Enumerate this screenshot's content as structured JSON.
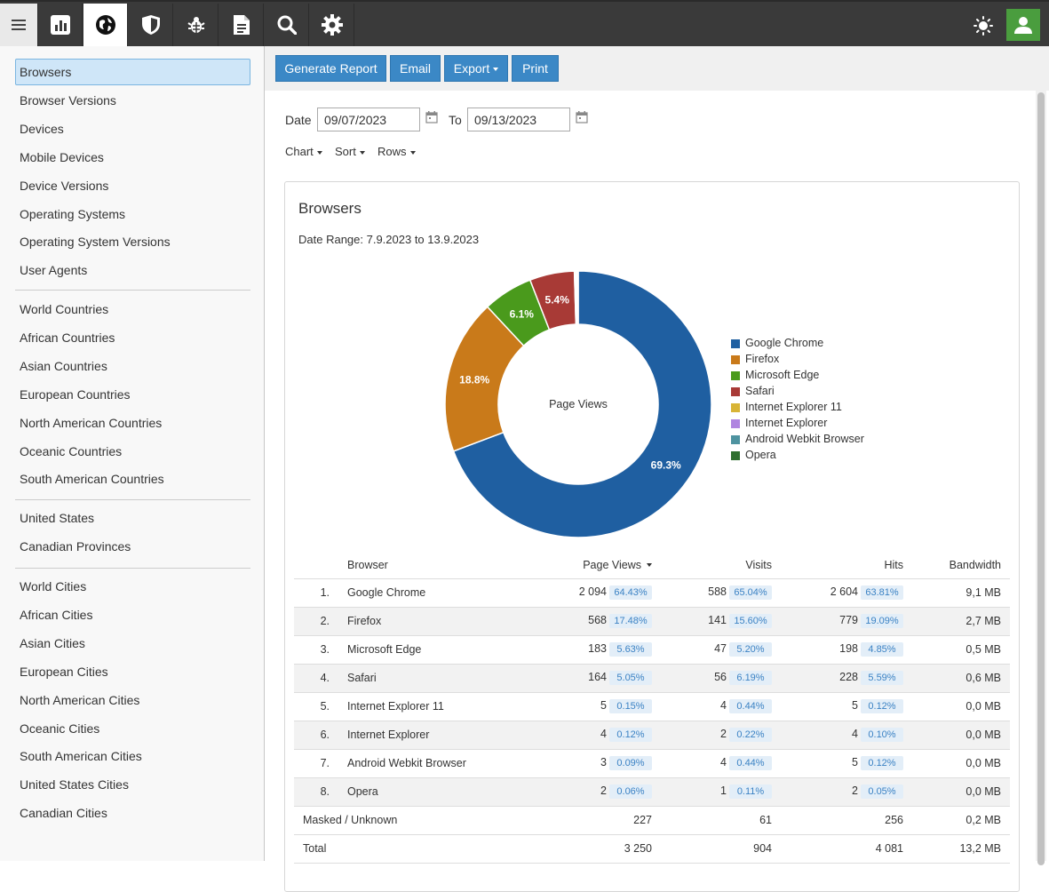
{
  "topbar": {
    "icons": [
      "menu-icon",
      "bar-chart-icon",
      "globe-icon",
      "shield-icon",
      "bug-icon",
      "document-icon",
      "search-icon",
      "gear-icon"
    ],
    "right_icons": [
      "sun-icon",
      "user-icon"
    ],
    "accent": "#3b88c6",
    "user_bg": "#4a9d3e"
  },
  "sidebar": {
    "groups": [
      [
        "Browsers",
        "Browser Versions",
        "Devices",
        "Mobile Devices",
        "Device Versions",
        "Operating Systems",
        "Operating System Versions",
        "User Agents"
      ],
      [
        "World Countries",
        "African Countries",
        "Asian Countries",
        "European Countries",
        "North American Countries",
        "Oceanic Countries",
        "South American Countries"
      ],
      [
        "United States",
        "Canadian Provinces"
      ],
      [
        "World Cities",
        "African Cities",
        "Asian Cities",
        "European Cities",
        "North American Cities",
        "Oceanic Cities",
        "South American Cities",
        "United States Cities",
        "Canadian Cities"
      ]
    ],
    "active": "Browsers"
  },
  "toolbar": {
    "generate": "Generate Report",
    "email": "Email",
    "export": "Export",
    "print": "Print"
  },
  "filters": {
    "date_label": "Date",
    "date_from": "09/07/2023",
    "to_label": "To",
    "date_to": "09/13/2023",
    "chart": "Chart",
    "sort": "Sort",
    "rows": "Rows"
  },
  "report": {
    "title": "Browsers",
    "date_range": "Date Range: 7.9.2023 to 13.9.2023",
    "center_label": "Page Views"
  },
  "chart_data": {
    "type": "pie",
    "title": "Browsers",
    "center_label": "Page Views",
    "categories": [
      "Google Chrome",
      "Firefox",
      "Microsoft Edge",
      "Safari",
      "Internet Explorer 11",
      "Internet Explorer",
      "Android Webkit Browser",
      "Opera"
    ],
    "values": [
      2094,
      568,
      183,
      164,
      5,
      4,
      3,
      2
    ],
    "slice_labels": [
      "69.3%",
      "18.8%",
      "6.1%",
      "5.4%",
      "",
      "",
      "",
      ""
    ],
    "colors": [
      "#1f5fa1",
      "#c97a1a",
      "#4a9a1c",
      "#a83a36",
      "#d8b436",
      "#b085e0",
      "#4e93a0",
      "#2f6f2f"
    ],
    "legend_position": "right"
  },
  "table": {
    "headers": {
      "browser": "Browser",
      "page_views": "Page Views",
      "visits": "Visits",
      "hits": "Hits",
      "bandwidth": "Bandwidth"
    },
    "rows": [
      {
        "rank": "1.",
        "name": "Google Chrome",
        "pv": "2 094",
        "pv_pct": "64.43%",
        "visits": "588",
        "visits_pct": "65.04%",
        "hits": "2 604",
        "hits_pct": "63.81%",
        "bw": "9,1 MB"
      },
      {
        "rank": "2.",
        "name": "Firefox",
        "pv": "568",
        "pv_pct": "17.48%",
        "visits": "141",
        "visits_pct": "15.60%",
        "hits": "779",
        "hits_pct": "19.09%",
        "bw": "2,7 MB"
      },
      {
        "rank": "3.",
        "name": "Microsoft Edge",
        "pv": "183",
        "pv_pct": "5.63%",
        "visits": "47",
        "visits_pct": "5.20%",
        "hits": "198",
        "hits_pct": "4.85%",
        "bw": "0,5 MB"
      },
      {
        "rank": "4.",
        "name": "Safari",
        "pv": "164",
        "pv_pct": "5.05%",
        "visits": "56",
        "visits_pct": "6.19%",
        "hits": "228",
        "hits_pct": "5.59%",
        "bw": "0,6 MB"
      },
      {
        "rank": "5.",
        "name": "Internet Explorer 11",
        "pv": "5",
        "pv_pct": "0.15%",
        "visits": "4",
        "visits_pct": "0.44%",
        "hits": "5",
        "hits_pct": "0.12%",
        "bw": "0,0 MB"
      },
      {
        "rank": "6.",
        "name": "Internet Explorer",
        "pv": "4",
        "pv_pct": "0.12%",
        "visits": "2",
        "visits_pct": "0.22%",
        "hits": "4",
        "hits_pct": "0.10%",
        "bw": "0,0 MB"
      },
      {
        "rank": "7.",
        "name": "Android Webkit Browser",
        "pv": "3",
        "pv_pct": "0.09%",
        "visits": "4",
        "visits_pct": "0.44%",
        "hits": "5",
        "hits_pct": "0.12%",
        "bw": "0,0 MB"
      },
      {
        "rank": "8.",
        "name": "Opera",
        "pv": "2",
        "pv_pct": "0.06%",
        "visits": "1",
        "visits_pct": "0.11%",
        "hits": "2",
        "hits_pct": "0.05%",
        "bw": "0,0 MB"
      }
    ],
    "masked": {
      "label": "Masked / Unknown",
      "pv": "227",
      "visits": "61",
      "hits": "256",
      "bw": "0,2 MB"
    },
    "total": {
      "label": "Total",
      "pv": "3 250",
      "visits": "904",
      "hits": "4 081",
      "bw": "13,2 MB"
    }
  }
}
